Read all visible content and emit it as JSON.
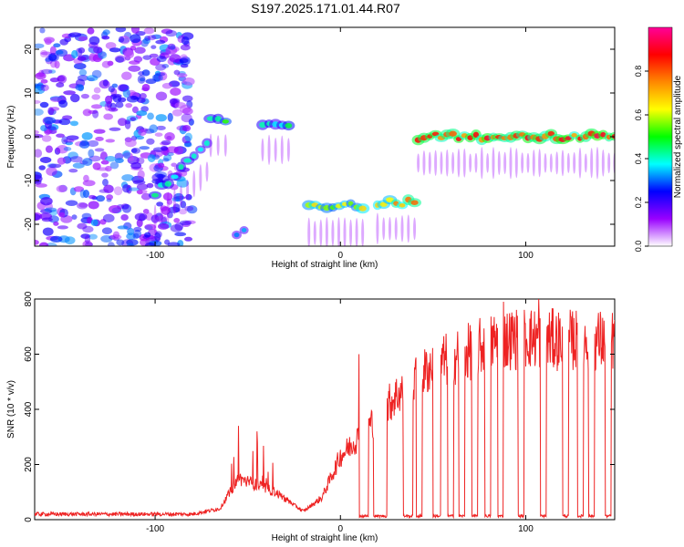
{
  "title": "S197.2025.171.01.44.R07",
  "chart_data": [
    {
      "type": "heatmap",
      "xlabel": "Height of straight line (km)",
      "ylabel": "Frequency (Hz)",
      "xlim": [
        -165,
        148
      ],
      "ylim": [
        -25,
        25
      ],
      "x_ticks": [
        -100,
        0,
        100
      ],
      "y_ticks": [
        20,
        10,
        0,
        -10,
        -20
      ],
      "colorbar": {
        "label": "Normalized spectral amplitude",
        "range": [
          0,
          1
        ],
        "ticks": [
          "0.0",
          "0.2",
          "0.4",
          "0.6",
          "0.8"
        ],
        "colors": [
          "#ffffff",
          "#9900ff",
          "#0000ff",
          "#00ffff",
          "#00ff00",
          "#ffff00",
          "#ff8800",
          "#ff0000",
          "#ff0099"
        ]
      },
      "features": [
        {
          "x": [
            -165,
            -80
          ],
          "freq": "broadband noise",
          "amplitude": 0.25
        },
        {
          "x": [
            -100,
            -72
          ],
          "freq_start": -13,
          "freq_end": -2,
          "amplitude": 0.45
        },
        {
          "x": [
            -70,
            -62
          ],
          "freq": 4,
          "amplitude": 0.5
        },
        {
          "x": [
            -56,
            -52
          ],
          "freq": -22,
          "amplitude": 0.35
        },
        {
          "x": [
            -42,
            -28
          ],
          "freq": 3,
          "amplitude": 0.45
        },
        {
          "x": [
            -17,
            12
          ],
          "freq": -16,
          "amplitude": 0.65
        },
        {
          "x": [
            20,
            40
          ],
          "freq": -15,
          "amplitude": 0.75
        },
        {
          "x": [
            42,
            148
          ],
          "freq": 0,
          "amplitude": 0.9
        }
      ]
    },
    {
      "type": "line",
      "xlabel": "Height of straight line (km)",
      "ylabel": "SNR (10 * v/v)",
      "xlim": [
        -165,
        148
      ],
      "ylim": [
        0,
        800
      ],
      "x_ticks": [
        -100,
        0,
        100
      ],
      "y_ticks": [
        0,
        200,
        400,
        600,
        800
      ],
      "color": "#ee2222",
      "series_keypoints": [
        {
          "x": -165,
          "y": 20
        },
        {
          "x": -80,
          "y": 20
        },
        {
          "x": -65,
          "y": 40
        },
        {
          "x": -55,
          "y": 150
        },
        {
          "x": -35,
          "y": 100
        },
        {
          "x": -20,
          "y": 30
        },
        {
          "x": -10,
          "y": 80
        },
        {
          "x": 0,
          "y": 230
        },
        {
          "x": 10,
          "y": 300
        },
        {
          "x": 30,
          "y": 450
        },
        {
          "x": 50,
          "y": 560
        },
        {
          "x": 70,
          "y": 610
        },
        {
          "x": 85,
          "y": 650
        },
        {
          "x": 100,
          "y": 660
        },
        {
          "x": 120,
          "y": 650
        },
        {
          "x": 148,
          "y": 650
        }
      ],
      "dropouts": [
        [
          10,
          15
        ],
        [
          18,
          25
        ],
        [
          34,
          39
        ],
        [
          41,
          44
        ],
        [
          50,
          54
        ],
        [
          58,
          61
        ],
        [
          64,
          67
        ],
        [
          71,
          74
        ],
        [
          78,
          81
        ],
        [
          85,
          88
        ],
        [
          96,
          99
        ],
        [
          108,
          111
        ],
        [
          120,
          123
        ],
        [
          128,
          131
        ],
        [
          134,
          137
        ],
        [
          143,
          146
        ]
      ],
      "spikes": [
        {
          "x": -55,
          "y": 340
        },
        {
          "x": -45,
          "y": 320
        },
        {
          "x": 10,
          "y": 600
        },
        {
          "x": 88,
          "y": 790
        },
        {
          "x": 107,
          "y": 800
        }
      ]
    }
  ]
}
